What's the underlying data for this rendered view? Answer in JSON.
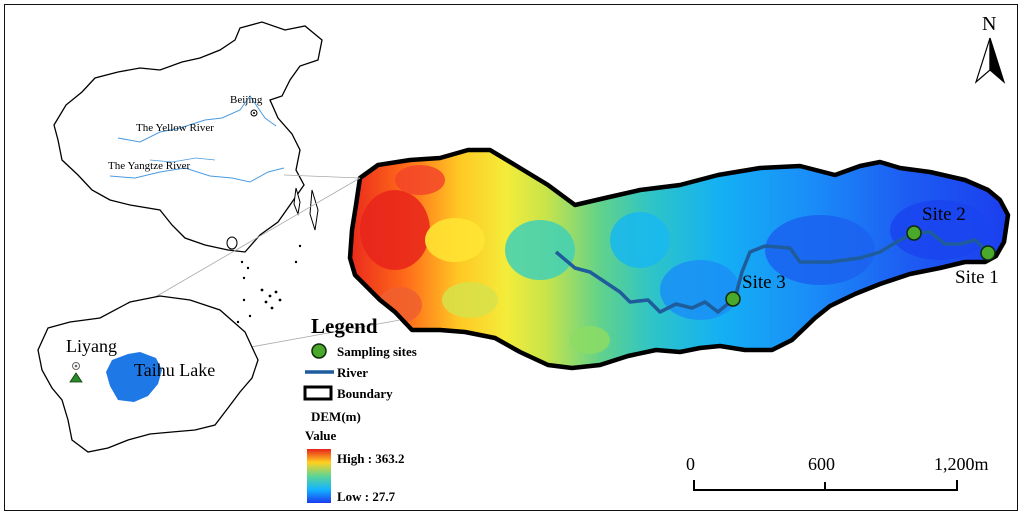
{
  "north_label": "N",
  "china_map": {
    "beijing": "Beijing",
    "yellow_river": "The Yellow River",
    "yangtze_river": "The Yangtze River"
  },
  "region_map": {
    "liyang": "Liyang",
    "taihu_lake": "Taihu Lake"
  },
  "sites": {
    "site1": "Site 1",
    "site2": "Site 2",
    "site3": "Site 3"
  },
  "legend": {
    "title": "Legend",
    "sampling_sites": "Sampling sites",
    "river": "River",
    "boundary": "Boundary",
    "dem": "DEM(m)",
    "value": "Value",
    "high": "High : 363.2",
    "low": "Low : 27.7"
  },
  "scale_bar": {
    "t0": "0",
    "t1": "600",
    "t2": "1,200m"
  },
  "colors": {
    "dem_high": "#e8241c",
    "dem_mid_high": "#ffe61f",
    "dem_mid": "#4fd0a8",
    "dem_mid_low": "#14b4ff",
    "dem_low": "#1a3bf0",
    "river": "#1f5c9c",
    "site_fill": "#4aa82a",
    "lake": "#1e78e6"
  }
}
